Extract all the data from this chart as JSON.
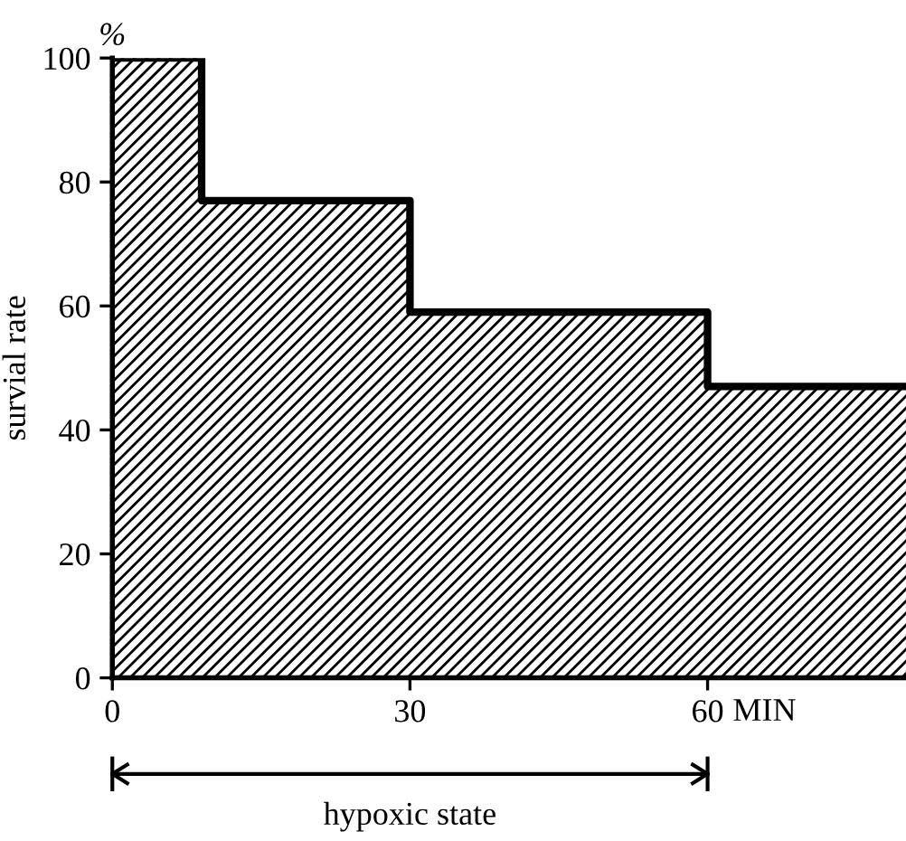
{
  "chart_data": {
    "type": "area",
    "ylabel": "survial rate",
    "annotations": [
      "%",
      "hypoxic state"
    ],
    "x": [
      0,
      9,
      9,
      30,
      30,
      60,
      60,
      80
    ],
    "series": [
      {
        "color": "#000000",
        "values": [
          100,
          100,
          77,
          77,
          59,
          59,
          47,
          47
        ]
      }
    ],
    "xlim": [
      0,
      80
    ],
    "ylim": [
      0,
      100
    ],
    "xticks": [
      0,
      30,
      60
    ],
    "xlabel": "MIN",
    "yticks": [
      0,
      20,
      40,
      60,
      80,
      100
    ],
    "grid": false
  }
}
